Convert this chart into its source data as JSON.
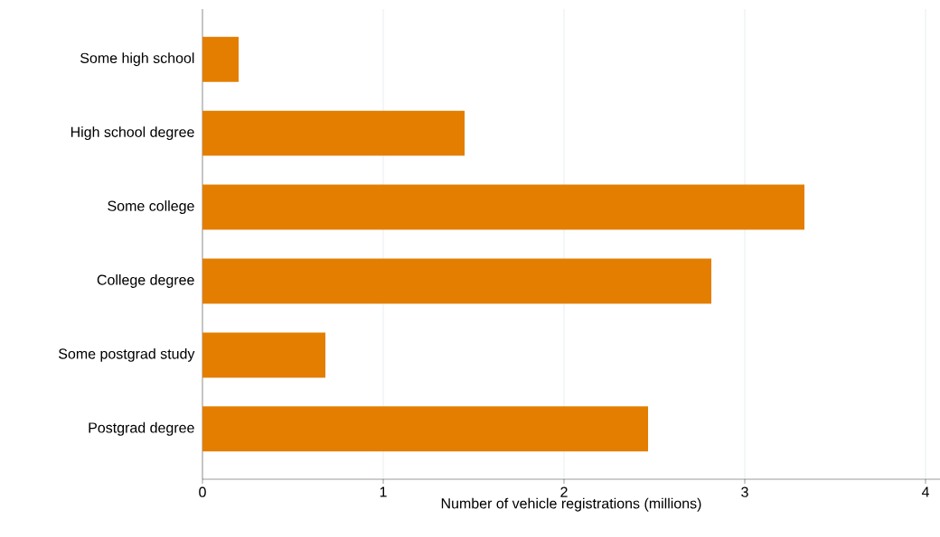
{
  "chart_data": {
    "type": "bar",
    "orientation": "horizontal",
    "xlabel": "Number of vehicle registrations (millions)",
    "categories": [
      "Some high school",
      "High school degree",
      "Some college",
      "College degree",
      "Some postgrad study",
      "Postgrad degree"
    ],
    "values": [
      0.2,
      1.45,
      3.33,
      2.815,
      0.68,
      2.465
    ],
    "color": "#e37e00",
    "xlim": [
      0,
      4.08
    ],
    "xticks": [
      0,
      1,
      2,
      3,
      4
    ],
    "grid": "x"
  }
}
